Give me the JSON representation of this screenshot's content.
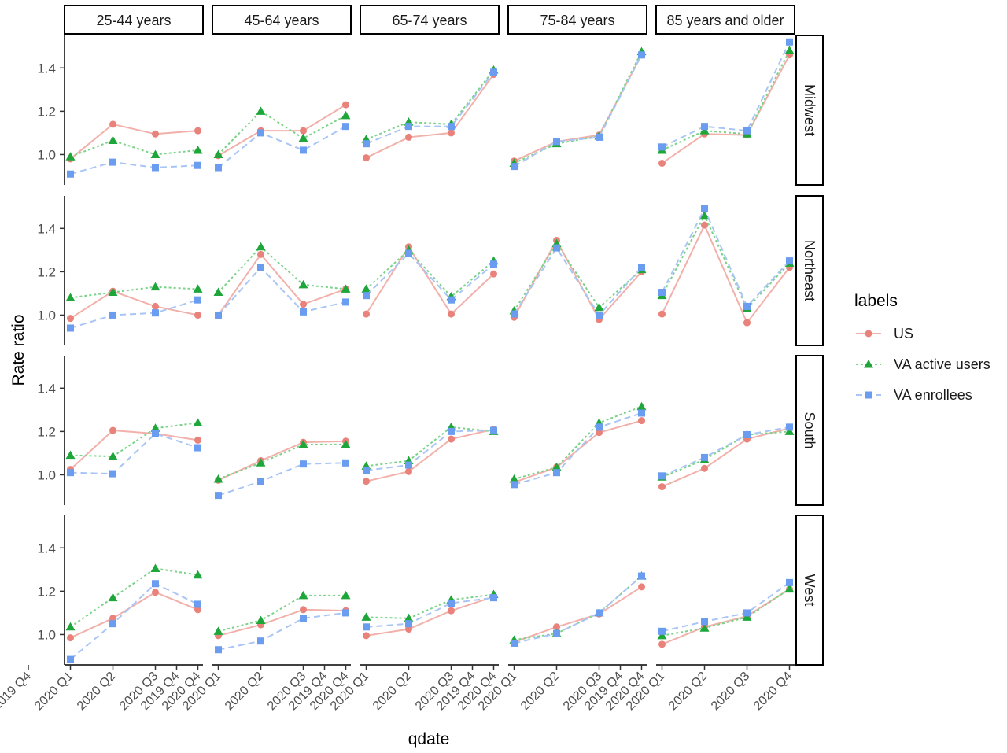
{
  "chart_data": {
    "type": "line",
    "ylabel": "Rate ratio",
    "xlabel": "qdate",
    "legend": {
      "title": "labels",
      "position": "right",
      "entries": [
        "US",
        "VA active users",
        "VA enrollees"
      ]
    },
    "column_facets": [
      "25-44 years",
      "45-64 years",
      "65-74 years",
      "75-84 years",
      "85 years and older"
    ],
    "row_facets": [
      "Midwest",
      "Northeast",
      "South",
      "West"
    ],
    "x_ticks": [
      "2020 Q1",
      "2020 Q2",
      "2020 Q3",
      "2019 Q4",
      "2020 Q4"
    ],
    "x_ticks_last_column": [
      "2020 Q1",
      "2020 Q2",
      "2020 Q3",
      "2020 Q4"
    ],
    "x_tick_first_panel_left": "2019 Q4",
    "x_categories": [
      "2020 Q1",
      "2020 Q2",
      "2020 Q3",
      "2020 Q4"
    ],
    "y_ticks": [
      "1.0",
      "1.2",
      "1.4"
    ],
    "ylim": [
      0.86,
      1.55
    ],
    "grid": false,
    "colors": {
      "US": "#e8827a",
      "VA active users": "#1ea63a",
      "VA enrollees": "#6a9cf0"
    },
    "series_styles": {
      "US": {
        "marker": "circle",
        "dash": "solid",
        "line_color": "#f2b0aa"
      },
      "VA active users": {
        "marker": "triangle",
        "dash": "dotted",
        "line_color": "#7bd389"
      },
      "VA enrollees": {
        "marker": "square",
        "dash": "dashed",
        "line_color": "#a9c5f5"
      }
    },
    "panels": [
      {
        "row": "Midwest",
        "col": "25-44 years",
        "series": [
          {
            "name": "US",
            "values": [
              0.98,
              1.14,
              1.095,
              1.11
            ]
          },
          {
            "name": "VA active users",
            "values": [
              0.99,
              1.065,
              1.0,
              1.02
            ]
          },
          {
            "name": "VA enrollees",
            "values": [
              0.91,
              0.965,
              0.94,
              0.95
            ]
          }
        ]
      },
      {
        "row": "Midwest",
        "col": "45-64 years",
        "series": [
          {
            "name": "US",
            "values": [
              0.995,
              1.11,
              1.11,
              1.23
            ]
          },
          {
            "name": "VA active users",
            "values": [
              1.0,
              1.2,
              1.075,
              1.18
            ]
          },
          {
            "name": "VA enrollees",
            "values": [
              0.94,
              1.1,
              1.02,
              1.13
            ]
          }
        ]
      },
      {
        "row": "Midwest",
        "col": "65-74 years",
        "series": [
          {
            "name": "US",
            "values": [
              0.985,
              1.08,
              1.1,
              1.37
            ]
          },
          {
            "name": "VA active users",
            "values": [
              1.07,
              1.15,
              1.14,
              1.39
            ]
          },
          {
            "name": "VA enrollees",
            "values": [
              1.05,
              1.13,
              1.13,
              1.38
            ]
          }
        ]
      },
      {
        "row": "Midwest",
        "col": "75-84 years",
        "series": [
          {
            "name": "US",
            "values": [
              0.97,
              1.06,
              1.09,
              1.46
            ]
          },
          {
            "name": "VA active users",
            "values": [
              0.96,
              1.05,
              1.085,
              1.475
            ]
          },
          {
            "name": "VA enrollees",
            "values": [
              0.945,
              1.06,
              1.08,
              1.46
            ]
          }
        ]
      },
      {
        "row": "Midwest",
        "col": "85 years and older",
        "series": [
          {
            "name": "US",
            "values": [
              0.96,
              1.095,
              1.09,
              1.46
            ]
          },
          {
            "name": "VA active users",
            "values": [
              1.02,
              1.11,
              1.095,
              1.48
            ]
          },
          {
            "name": "VA enrollees",
            "values": [
              1.035,
              1.13,
              1.11,
              1.52
            ]
          }
        ]
      },
      {
        "row": "Northeast",
        "col": "25-44 years",
        "series": [
          {
            "name": "US",
            "values": [
              0.985,
              1.11,
              1.04,
              1.0
            ]
          },
          {
            "name": "VA active users",
            "values": [
              1.08,
              1.105,
              1.13,
              1.12
            ]
          },
          {
            "name": "VA enrollees",
            "values": [
              0.94,
              1.0,
              1.01,
              1.07
            ]
          }
        ]
      },
      {
        "row": "Northeast",
        "col": "45-64 years",
        "series": [
          {
            "name": "US",
            "values": [
              1.0,
              1.28,
              1.05,
              1.12
            ]
          },
          {
            "name": "VA active users",
            "values": [
              1.105,
              1.315,
              1.14,
              1.12
            ]
          },
          {
            "name": "VA enrollees",
            "values": [
              1.0,
              1.22,
              1.015,
              1.06
            ]
          }
        ]
      },
      {
        "row": "Northeast",
        "col": "65-74 years",
        "series": [
          {
            "name": "US",
            "values": [
              1.005,
              1.315,
              1.005,
              1.19
            ]
          },
          {
            "name": "VA active users",
            "values": [
              1.12,
              1.3,
              1.085,
              1.25
            ]
          },
          {
            "name": "VA enrollees",
            "values": [
              1.09,
              1.285,
              1.07,
              1.235
            ]
          }
        ]
      },
      {
        "row": "Northeast",
        "col": "75-84 years",
        "series": [
          {
            "name": "US",
            "values": [
              0.99,
              1.345,
              0.98,
              1.2
            ]
          },
          {
            "name": "VA active users",
            "values": [
              1.02,
              1.33,
              1.035,
              1.21
            ]
          },
          {
            "name": "VA enrollees",
            "values": [
              1.005,
              1.31,
              1.0,
              1.22
            ]
          }
        ]
      },
      {
        "row": "Northeast",
        "col": "85 years and older",
        "series": [
          {
            "name": "US",
            "values": [
              1.005,
              1.415,
              0.965,
              1.22
            ]
          },
          {
            "name": "VA active users",
            "values": [
              1.09,
              1.46,
              1.03,
              1.24
            ]
          },
          {
            "name": "VA enrollees",
            "values": [
              1.105,
              1.49,
              1.04,
              1.25
            ]
          }
        ]
      },
      {
        "row": "South",
        "col": "25-44 years",
        "series": [
          {
            "name": "US",
            "values": [
              1.025,
              1.205,
              1.19,
              1.16
            ]
          },
          {
            "name": "VA active users",
            "values": [
              1.09,
              1.085,
              1.215,
              1.24
            ]
          },
          {
            "name": "VA enrollees",
            "values": [
              1.01,
              1.005,
              1.19,
              1.125
            ]
          }
        ]
      },
      {
        "row": "South",
        "col": "45-64 years",
        "series": [
          {
            "name": "US",
            "values": [
              0.975,
              1.065,
              1.15,
              1.155
            ]
          },
          {
            "name": "VA active users",
            "values": [
              0.98,
              1.055,
              1.14,
              1.14
            ]
          },
          {
            "name": "VA enrollees",
            "values": [
              0.905,
              0.97,
              1.05,
              1.055
            ]
          }
        ]
      },
      {
        "row": "South",
        "col": "65-74 years",
        "series": [
          {
            "name": "US",
            "values": [
              0.97,
              1.015,
              1.165,
              1.21
            ]
          },
          {
            "name": "VA active users",
            "values": [
              1.04,
              1.065,
              1.22,
              1.2
            ]
          },
          {
            "name": "VA enrollees",
            "values": [
              1.02,
              1.045,
              1.2,
              1.205
            ]
          }
        ]
      },
      {
        "row": "South",
        "col": "75-84 years",
        "series": [
          {
            "name": "US",
            "values": [
              0.965,
              1.035,
              1.195,
              1.25
            ]
          },
          {
            "name": "VA active users",
            "values": [
              0.98,
              1.035,
              1.24,
              1.315
            ]
          },
          {
            "name": "VA enrollees",
            "values": [
              0.955,
              1.01,
              1.22,
              1.285
            ]
          }
        ]
      },
      {
        "row": "South",
        "col": "85 years and older",
        "series": [
          {
            "name": "US",
            "values": [
              0.945,
              1.03,
              1.165,
              1.215
            ]
          },
          {
            "name": "VA active users",
            "values": [
              0.99,
              1.07,
              1.185,
              1.2
            ]
          },
          {
            "name": "VA enrollees",
            "values": [
              0.995,
              1.08,
              1.185,
              1.22
            ]
          }
        ]
      },
      {
        "row": "West",
        "col": "25-44 years",
        "series": [
          {
            "name": "US",
            "values": [
              0.985,
              1.075,
              1.195,
              1.115
            ]
          },
          {
            "name": "VA active users",
            "values": [
              1.035,
              1.17,
              1.305,
              1.275
            ]
          },
          {
            "name": "VA enrollees",
            "values": [
              0.885,
              1.05,
              1.235,
              1.14
            ]
          }
        ]
      },
      {
        "row": "West",
        "col": "45-64 years",
        "series": [
          {
            "name": "US",
            "values": [
              0.995,
              1.045,
              1.115,
              1.11
            ]
          },
          {
            "name": "VA active users",
            "values": [
              1.015,
              1.065,
              1.18,
              1.18
            ]
          },
          {
            "name": "VA enrollees",
            "values": [
              0.93,
              0.97,
              1.075,
              1.1
            ]
          }
        ]
      },
      {
        "row": "West",
        "col": "65-74 years",
        "series": [
          {
            "name": "US",
            "values": [
              0.995,
              1.025,
              1.11,
              1.175
            ]
          },
          {
            "name": "VA active users",
            "values": [
              1.08,
              1.075,
              1.16,
              1.185
            ]
          },
          {
            "name": "VA enrollees",
            "values": [
              1.035,
              1.05,
              1.145,
              1.17
            ]
          }
        ]
      },
      {
        "row": "West",
        "col": "75-84 years",
        "series": [
          {
            "name": "US",
            "values": [
              0.965,
              1.035,
              1.095,
              1.22
            ]
          },
          {
            "name": "VA active users",
            "values": [
              0.975,
              1.005,
              1.1,
              1.27
            ]
          },
          {
            "name": "VA enrollees",
            "values": [
              0.96,
              1.005,
              1.1,
              1.27
            ]
          }
        ]
      },
      {
        "row": "West",
        "col": "85 years and older",
        "series": [
          {
            "name": "US",
            "values": [
              0.955,
              1.035,
              1.085,
              1.21
            ]
          },
          {
            "name": "VA active users",
            "values": [
              0.995,
              1.03,
              1.08,
              1.21
            ]
          },
          {
            "name": "VA enrollees",
            "values": [
              1.015,
              1.06,
              1.1,
              1.24
            ]
          }
        ]
      }
    ]
  }
}
